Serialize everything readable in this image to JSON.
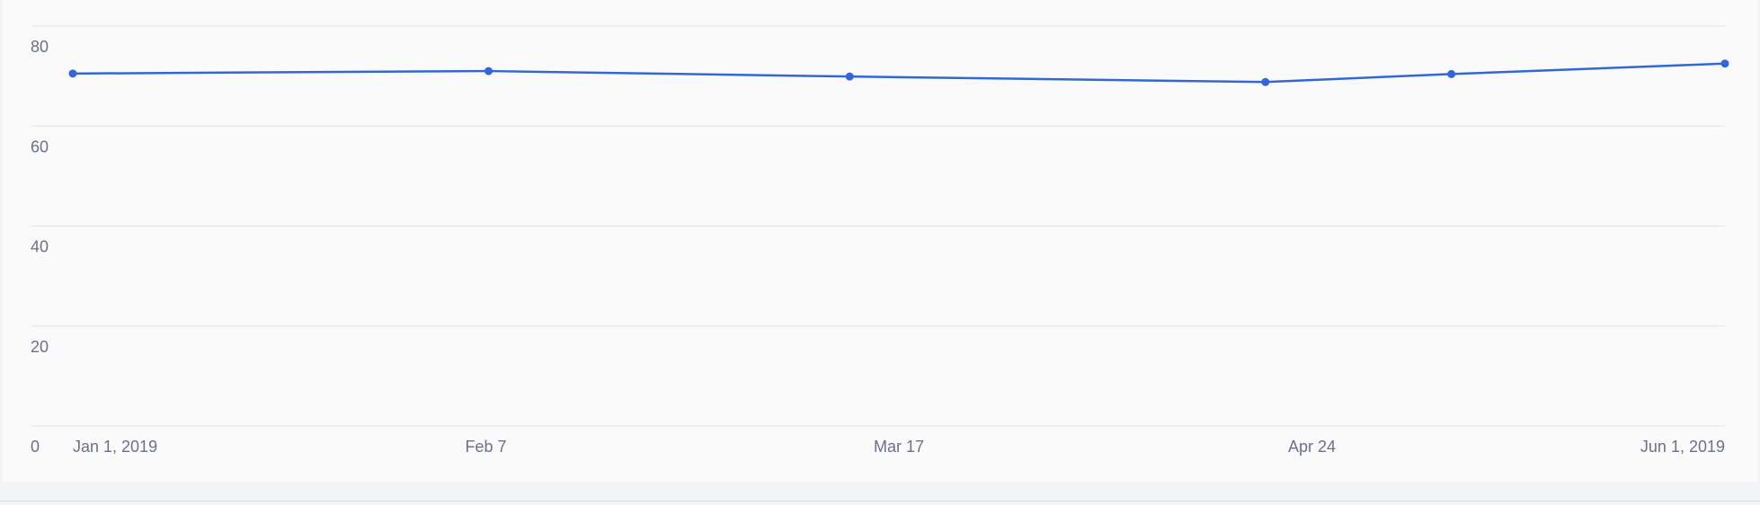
{
  "chart_data": {
    "type": "line",
    "x": [
      "2019-01-01",
      "2019-02-08",
      "2019-03-13",
      "2019-04-20",
      "2019-05-07",
      "2019-06-01"
    ],
    "series": [
      {
        "values": [
          70.5,
          71.0,
          69.9,
          68.8,
          70.4,
          72.5
        ]
      }
    ],
    "x_tick_labels": [
      "Jan 1, 2019",
      "Feb 7",
      "Mar 17",
      "Apr 24",
      "Jun 1, 2019"
    ],
    "y_tick_labels": [
      "0",
      "20",
      "40",
      "60",
      "80"
    ],
    "xlim": [
      "2019-01-01",
      "2019-06-01"
    ],
    "ylim": [
      0,
      80
    ],
    "grid": true,
    "line_color": "#3367d6",
    "title": "",
    "xlabel": "",
    "ylabel": ""
  }
}
